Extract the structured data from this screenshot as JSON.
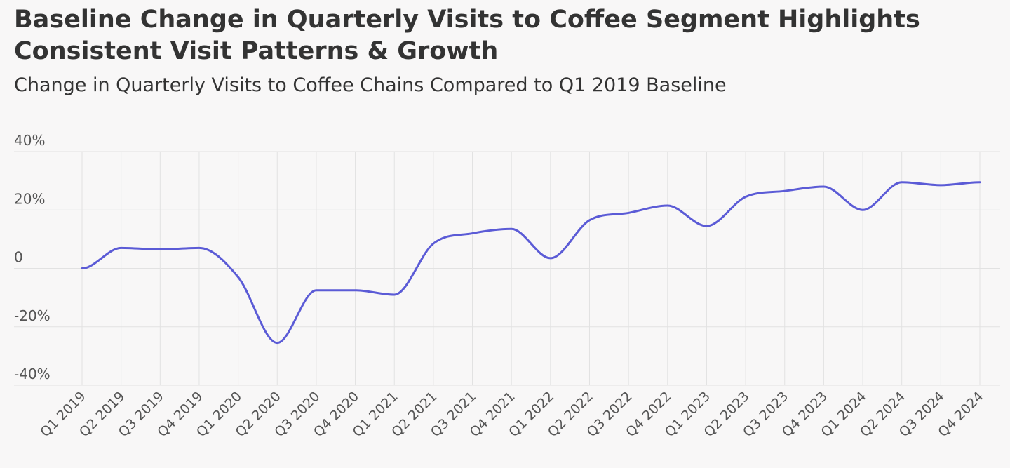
{
  "title": "Baseline Change in Quarterly Visits to Coffee Segment Highlights Consistent Visit Patterns & Growth",
  "subtitle": "Change in Quarterly Visits to Coffee Chains Compared to Q1 2019 Baseline",
  "colors": {
    "line": "#5b5bd6",
    "grid": "#e2e2e2",
    "background": "#f8f7f7",
    "text": "#333333"
  },
  "chart_data": {
    "type": "line",
    "title": "Baseline Change in Quarterly Visits to Coffee Segment Highlights Consistent Visit Patterns & Growth",
    "subtitle": "Change in Quarterly Visits to Coffee Chains Compared to Q1 2019 Baseline",
    "xlabel": "",
    "ylabel": "",
    "categories": [
      "Q1 2019",
      "Q2 2019",
      "Q3 2019",
      "Q4 2019",
      "Q1 2020",
      "Q2 2020",
      "Q3 2020",
      "Q4 2020",
      "Q1 2021",
      "Q2 2021",
      "Q3 2021",
      "Q4 2021",
      "Q1 2022",
      "Q2 2022",
      "Q3 2022",
      "Q4 2022",
      "Q1 2023",
      "Q2 2023",
      "Q3 2023",
      "Q4 2023",
      "Q1 2024",
      "Q2 2024",
      "Q3 2024",
      "Q4 2024"
    ],
    "series": [
      {
        "values": [
          0,
          7,
          6.5,
          7,
          -3,
          -25.5,
          -7.5,
          -7.5,
          -9,
          8.5,
          12,
          13.5,
          3.5,
          16.5,
          19,
          21.5,
          14.5,
          24.5,
          26.5,
          28,
          20,
          29.5,
          28.5,
          29.5
        ]
      }
    ],
    "ylim": [
      -40,
      40
    ],
    "yticks": [
      -40,
      -20,
      0,
      20,
      40
    ],
    "ytick_labels": [
      "-40%",
      "-20%",
      "0",
      "20%",
      "40%"
    ],
    "grid": true,
    "legend": "none"
  }
}
